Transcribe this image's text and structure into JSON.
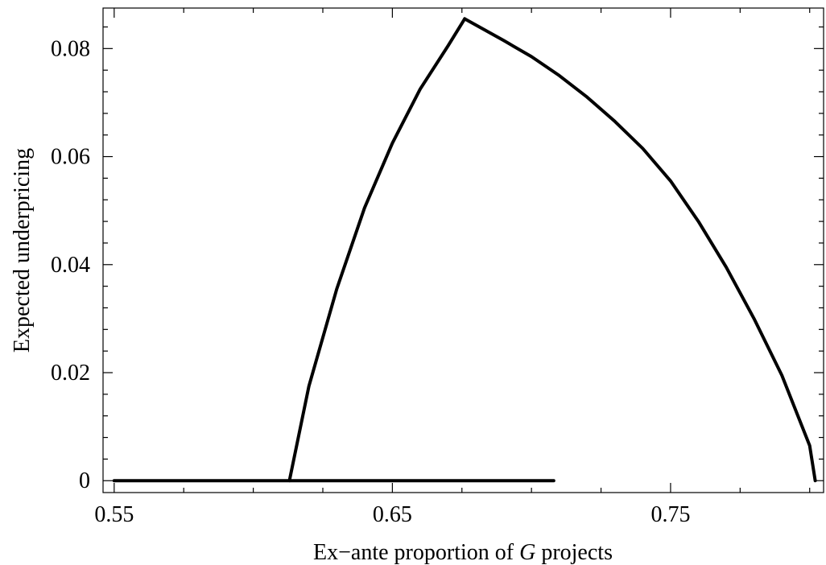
{
  "chart_data": {
    "type": "line",
    "title": "",
    "xlabel": {
      "before": "Ex−ante proportion of ",
      "italic": "G",
      "after": " projects"
    },
    "ylabel": "Expected underpricing",
    "xlim": [
      0.546,
      0.805
    ],
    "ylim": [
      -0.0022,
      0.0875
    ],
    "xticks": [
      {
        "value": 0.55,
        "label": "0.55"
      },
      {
        "value": 0.65,
        "label": "0.65"
      },
      {
        "value": 0.75,
        "label": "0.75"
      }
    ],
    "yticks": [
      {
        "value": 0.0,
        "label": "0"
      },
      {
        "value": 0.02,
        "label": "0.02"
      },
      {
        "value": 0.04,
        "label": "0.04"
      },
      {
        "value": 0.06,
        "label": "0.06"
      },
      {
        "value": 0.08,
        "label": "0.08"
      }
    ],
    "grid": false,
    "legend": "none",
    "line_color": "#000000",
    "series": [
      {
        "x": [
          0.55,
          0.708
        ],
        "y": [
          0.0,
          0.0
        ]
      },
      {
        "x": [
          0.613,
          0.62,
          0.63,
          0.64,
          0.65,
          0.66,
          0.67,
          0.676
        ],
        "y": [
          0.0,
          0.0175,
          0.0355,
          0.0505,
          0.0625,
          0.0725,
          0.0805,
          0.0855
        ]
      },
      {
        "x": [
          0.676,
          0.69,
          0.7,
          0.71,
          0.72,
          0.73,
          0.74,
          0.75,
          0.76,
          0.77,
          0.78,
          0.79,
          0.8,
          0.802
        ],
        "y": [
          0.0855,
          0.0815,
          0.0785,
          0.075,
          0.071,
          0.0665,
          0.0615,
          0.0555,
          0.048,
          0.0395,
          0.03,
          0.0195,
          0.0065,
          0.0
        ]
      }
    ]
  }
}
